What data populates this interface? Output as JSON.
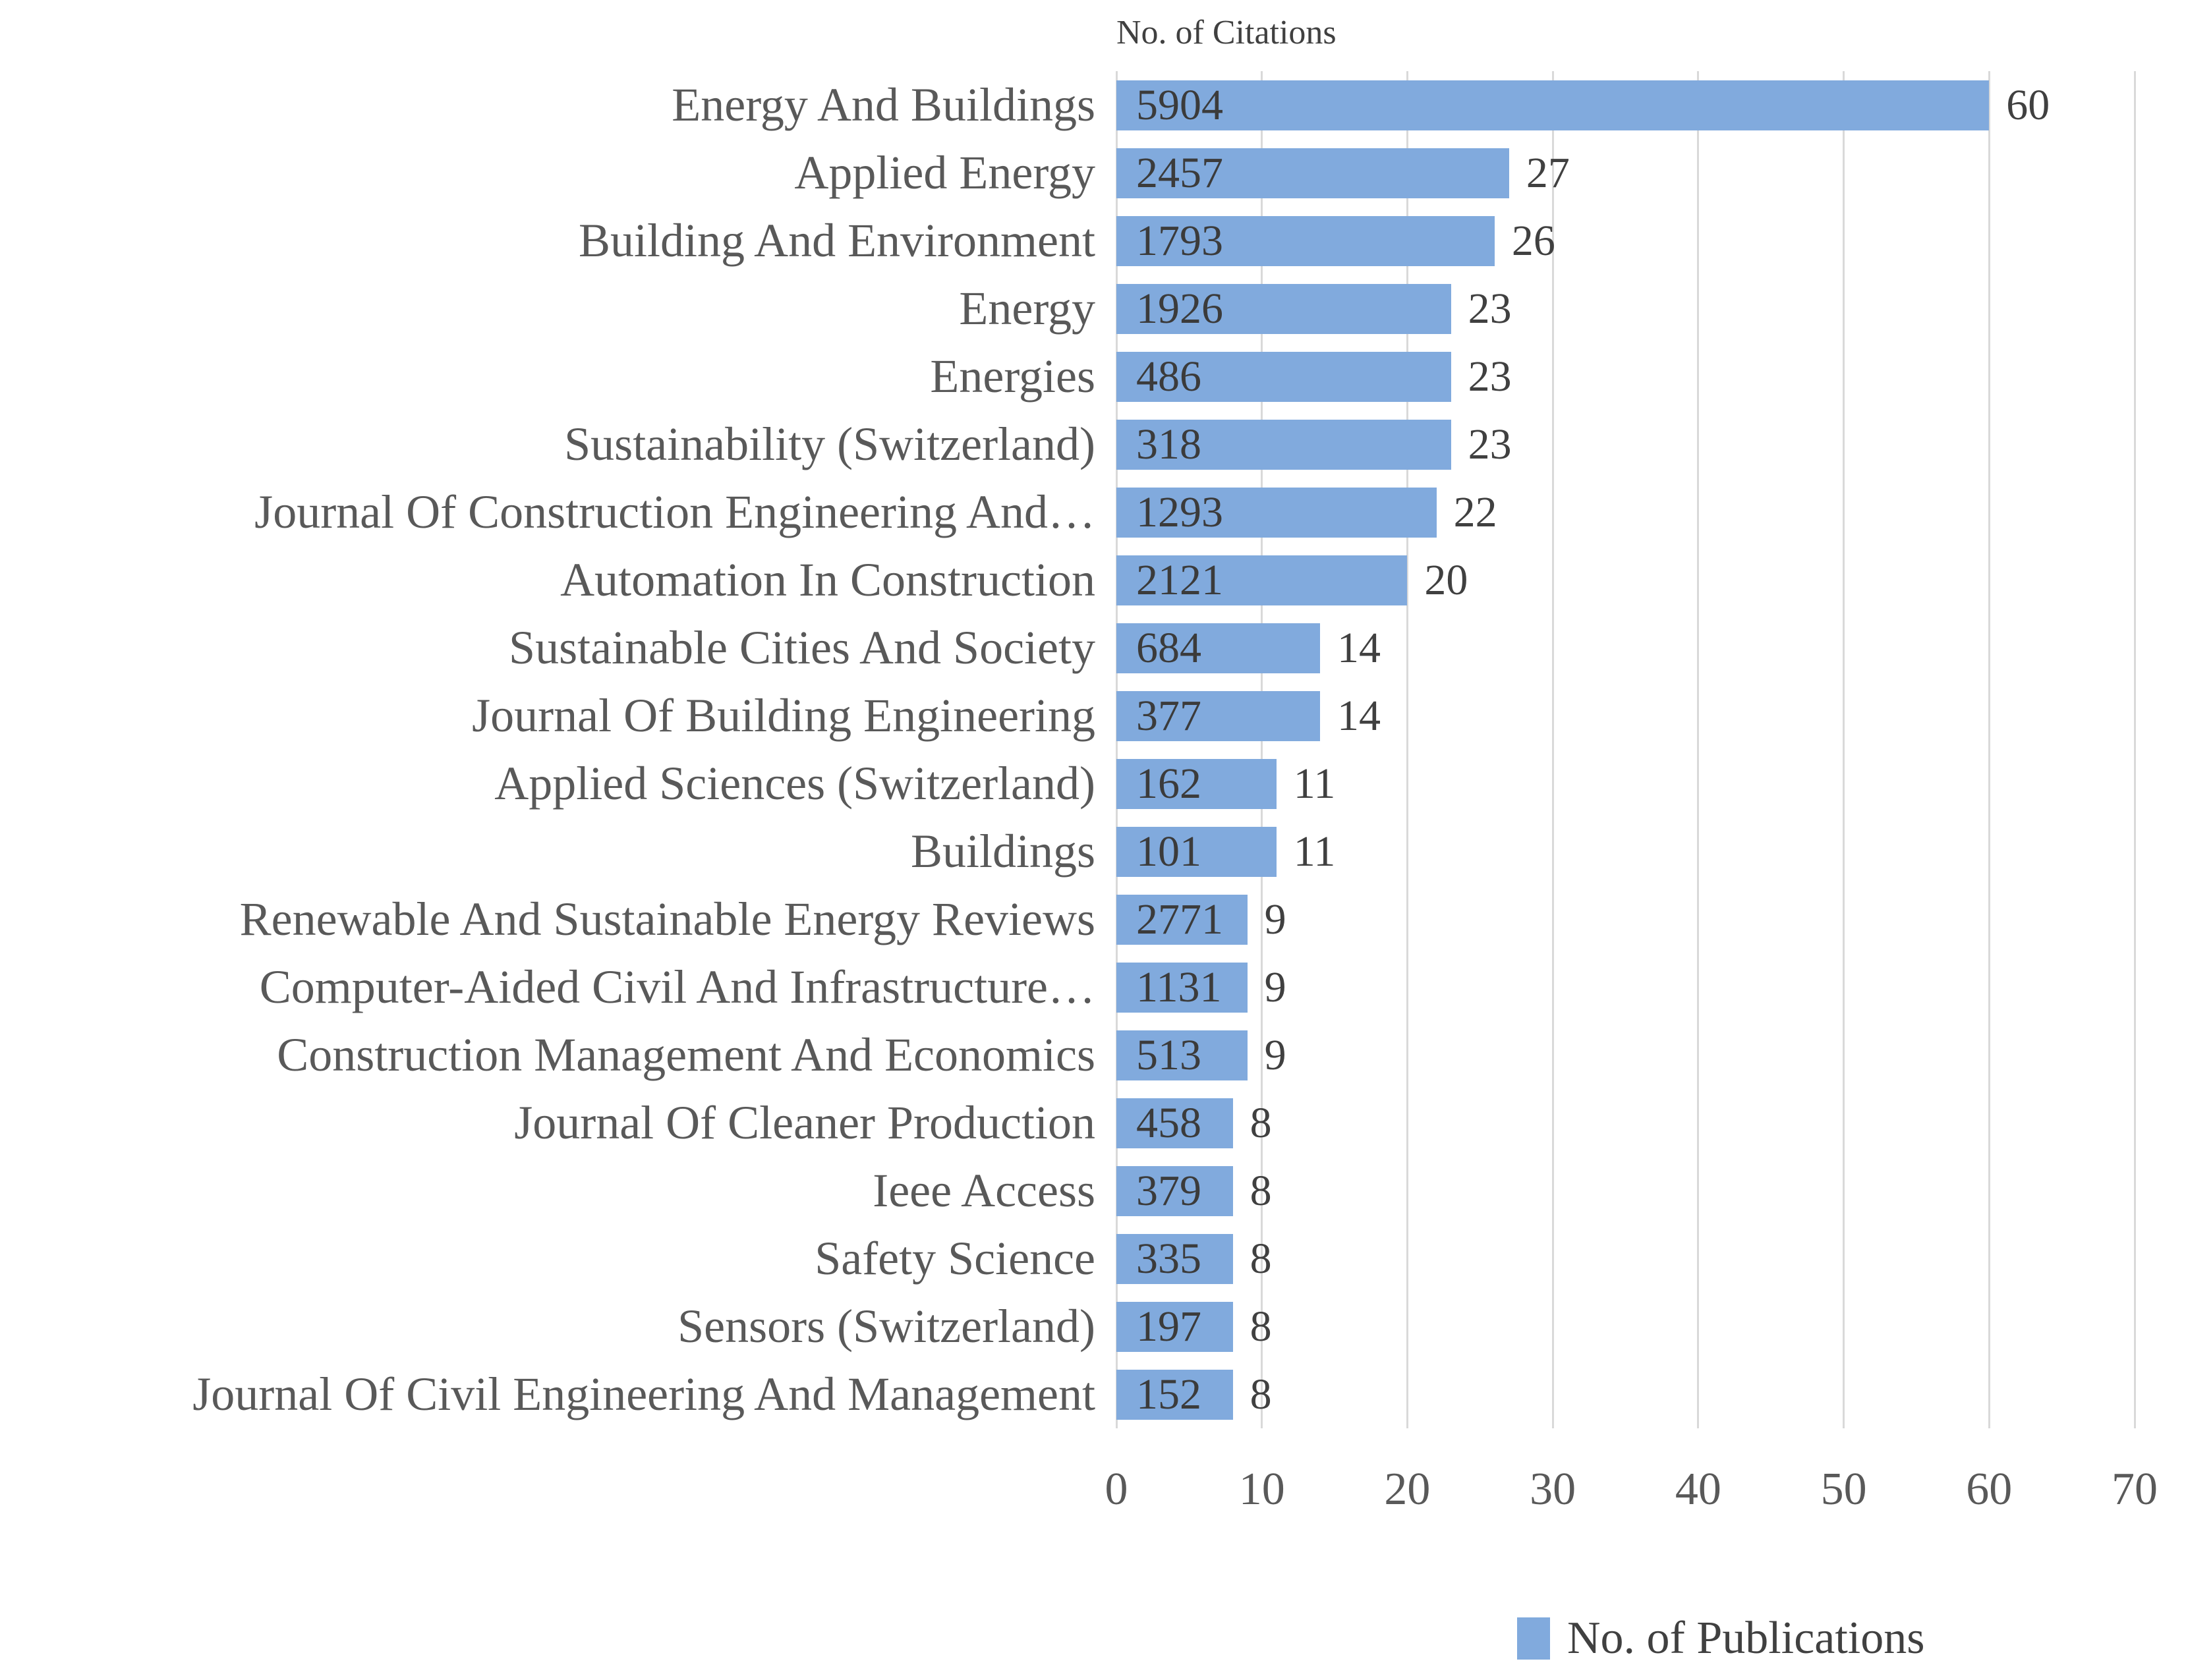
{
  "chart_data": {
    "type": "bar",
    "orientation": "horizontal",
    "title": "No. of Citations",
    "categories": [
      "Energy And Buildings",
      "Applied Energy",
      "Building And Environment",
      "Energy",
      "Energies",
      "Sustainability (Switzerland)",
      "Journal Of Construction Engineering And…",
      "Automation In Construction",
      "Sustainable Cities And Society",
      "Journal Of Building Engineering",
      "Applied Sciences (Switzerland)",
      "Buildings",
      "Renewable And Sustainable Energy Reviews",
      "Computer-Aided Civil And Infrastructure…",
      "Construction Management And Economics",
      "Journal Of Cleaner Production",
      "Ieee Access",
      "Safety Science",
      "Sensors (Switzerland)",
      "Journal Of Civil Engineering And Management"
    ],
    "series": [
      {
        "name": "No. of Publications",
        "role": "bar-length",
        "values": [
          60,
          27,
          26,
          23,
          23,
          23,
          22,
          20,
          14,
          14,
          11,
          11,
          9,
          9,
          9,
          8,
          8,
          8,
          8,
          8
        ]
      },
      {
        "name": "No. of Citations",
        "role": "in-bar-labels",
        "values": [
          5904,
          2457,
          1793,
          1926,
          486,
          318,
          1293,
          2121,
          684,
          377,
          162,
          101,
          2771,
          1131,
          513,
          458,
          379,
          335,
          197,
          152
        ]
      }
    ],
    "xlabel": "",
    "ylabel": "",
    "xlim": [
      0,
      70
    ],
    "x_ticks": [
      0,
      10,
      20,
      30,
      40,
      50,
      60,
      70
    ],
    "grid": true,
    "legend": {
      "position": "bottom-right",
      "entries": [
        "No. of Publications"
      ]
    },
    "colors": {
      "bar": "#81aadd",
      "grid": "#d9d9d9",
      "category_text": "#595959",
      "value_text": "#3b3b3b",
      "tick_text": "#595959",
      "title_text": "#404040"
    }
  }
}
